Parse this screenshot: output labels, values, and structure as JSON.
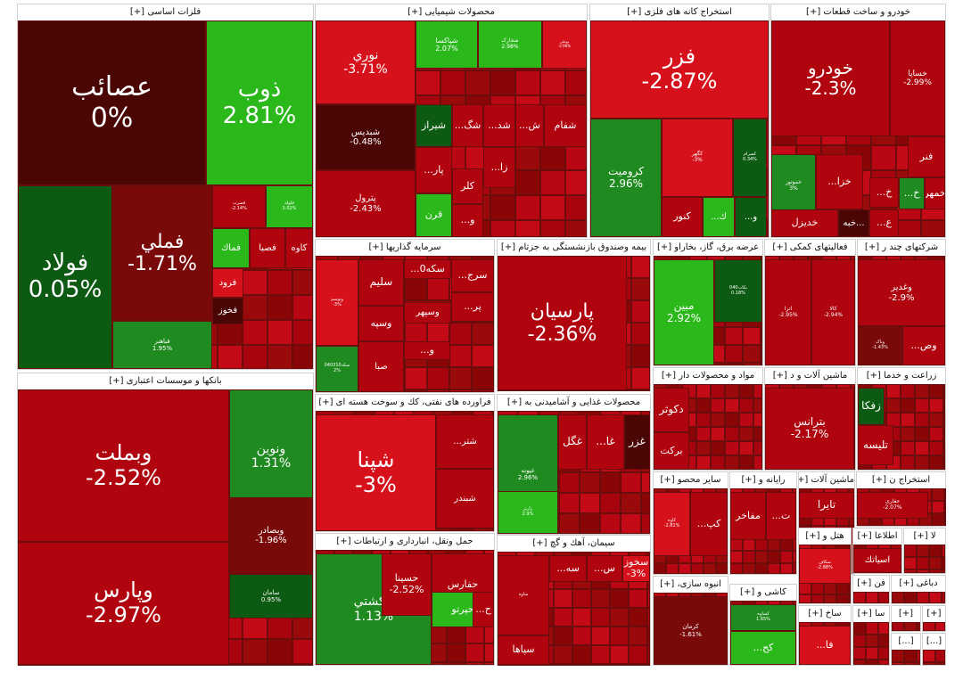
{
  "colors": {
    "deep_red": "#4a0505",
    "dark_red": "#7a0a0a",
    "red": "#b0040f",
    "bright_red": "#d6111b",
    "dark_green": "#0d5a12",
    "green": "#1f8a1f",
    "bright_green": "#2ab81b"
  },
  "chart_data": {
    "type": "treemap",
    "title": "",
    "sectors": [
      {
        "name": "فلزات اساسی [+]",
        "tiles": [
          {
            "symbol": "عصائب",
            "change": "0%",
            "color": "deep_red"
          },
          {
            "symbol": "ذوب",
            "change": "2.81%",
            "color": "bright_green"
          },
          {
            "symbol": "فولاد",
            "change": "0.05%",
            "color": "dark_green"
          },
          {
            "symbol": "فملي",
            "change": "-1.71%",
            "color": "dark_red"
          },
          {
            "symbol": "فباهنر",
            "change": "1.95%",
            "color": "green"
          },
          {
            "symbol": "فسرب",
            "change": "-2.14%",
            "color": "red"
          },
          {
            "symbol": "فلوله",
            "change": "3.02%",
            "color": "bright_green"
          },
          {
            "symbol": "فماك",
            "change": "",
            "color": "bright_green"
          },
          {
            "symbol": "فصبا",
            "change": "",
            "color": "red"
          },
          {
            "symbol": "كاوه",
            "change": "",
            "color": "red"
          },
          {
            "symbol": "فرود",
            "change": "",
            "color": "bright_red"
          },
          {
            "symbol": "فخوز",
            "change": "",
            "color": "deep_red"
          }
        ]
      },
      {
        "name": "محصولات شیمیایی [+]",
        "tiles": [
          {
            "symbol": "نوري",
            "change": "-3.71%",
            "color": "bright_red"
          },
          {
            "symbol": "شپاكسا",
            "change": "2.07%",
            "color": "bright_green"
          },
          {
            "symbol": "شخارک",
            "change": "2.98%",
            "color": "bright_green"
          },
          {
            "symbol": "بوعلی",
            "change": "-2.98%",
            "color": "bright_red"
          },
          {
            "symbol": "شبديس",
            "change": "-0.48%",
            "color": "deep_red"
          },
          {
            "symbol": "پترول",
            "change": "-2.43%",
            "color": "red"
          },
          {
            "symbol": "شیراز",
            "change": "",
            "color": "dark_green"
          },
          {
            "symbol": "شگ...",
            "change": "",
            "color": "red"
          },
          {
            "symbol": "شد...",
            "change": "",
            "color": "red"
          },
          {
            "symbol": "ش...",
            "change": "",
            "color": "red"
          },
          {
            "symbol": "شفام",
            "change": "",
            "color": "red"
          },
          {
            "symbol": "پار...",
            "change": "",
            "color": "red"
          },
          {
            "symbol": "زا...",
            "change": "",
            "color": "red"
          },
          {
            "symbol": "كلر",
            "change": "",
            "color": "red"
          },
          {
            "symbol": "قرن",
            "change": "",
            "color": "bright_green"
          },
          {
            "symbol": "و...",
            "change": "",
            "color": "red"
          }
        ]
      },
      {
        "name": "استخراج كانه های فلزی [+]",
        "tiles": [
          {
            "symbol": "فزر",
            "change": "-2.87%",
            "color": "bright_red"
          },
          {
            "symbol": "كروميت",
            "change": "2.96%",
            "color": "green"
          },
          {
            "symbol": "كگهر",
            "change": "-3%",
            "color": "bright_red"
          },
          {
            "symbol": "كسرام",
            "change": "0.34%",
            "color": "dark_green"
          },
          {
            "symbol": "كنور",
            "change": "",
            "color": "red"
          },
          {
            "symbol": "ك...",
            "change": "",
            "color": "bright_green"
          },
          {
            "symbol": "و...",
            "change": "",
            "color": "dark_green"
          }
        ]
      },
      {
        "name": "خودرو و ساخت قطعات [+]",
        "tiles": [
          {
            "symbol": "خودرو",
            "change": "-2.3%",
            "color": "red"
          },
          {
            "symbol": "خساپا",
            "change": "-2.99%",
            "color": "red"
          },
          {
            "symbol": "خموتور",
            "change": "3%",
            "color": "green"
          },
          {
            "symbol": "خزا...",
            "change": "",
            "color": "red"
          },
          {
            "symbol": "فنر",
            "change": "",
            "color": "red"
          },
          {
            "symbol": "خمهر",
            "change": "",
            "color": "red"
          },
          {
            "symbol": "خ...",
            "change": "",
            "color": "red"
          },
          {
            "symbol": "خ...",
            "change": "",
            "color": "green"
          },
          {
            "symbol": "خديزل",
            "change": "",
            "color": "red"
          },
          {
            "symbol": "...خبه",
            "change": "",
            "color": "deep_red"
          },
          {
            "symbol": "ع...",
            "change": "",
            "color": "red"
          }
        ]
      },
      {
        "name": "بانكها و موسسات اعتباری [+]",
        "tiles": [
          {
            "symbol": "وبملت",
            "change": "-2.52%",
            "color": "red"
          },
          {
            "symbol": "ونوين",
            "change": "1.31%",
            "color": "green"
          },
          {
            "symbol": "وبصادر",
            "change": "-1.96%",
            "color": "dark_red"
          },
          {
            "symbol": "وپارس",
            "change": "-2.97%",
            "color": "red"
          },
          {
            "symbol": "سامان",
            "change": "0.95%",
            "color": "dark_green"
          }
        ]
      },
      {
        "name": "سرمايه گذاريها [+]",
        "tiles": [
          {
            "symbol": "وتوسم",
            "change": "-3%",
            "color": "bright_red"
          },
          {
            "symbol": "سليم",
            "change": "",
            "color": "red"
          },
          {
            "symbol": "سكه0...",
            "change": "",
            "color": "red"
          },
          {
            "symbol": "سرج...",
            "change": "",
            "color": "red"
          },
          {
            "symbol": "وسپهر",
            "change": "",
            "color": "red"
          },
          {
            "symbol": "پر...",
            "change": "",
            "color": "red"
          },
          {
            "symbol": "وسپه",
            "change": "",
            "color": "red"
          },
          {
            "symbol": "سكه040310",
            "change": "2%",
            "color": "green"
          },
          {
            "symbol": "و...",
            "change": "",
            "color": "red"
          },
          {
            "symbol": "صبا",
            "change": "",
            "color": "red"
          }
        ]
      },
      {
        "name": "بیمه وصندوق بازنشستگی به جزتام [+]",
        "tiles": [
          {
            "symbol": "پارسيان",
            "change": "-2.36%",
            "color": "red"
          }
        ]
      },
      {
        "name": "عرضه برق، گاز، بخاراو [+]",
        "tiles": [
          {
            "symbol": "مبين",
            "change": "2.92%",
            "color": "bright_green"
          },
          {
            "symbol": "بكاب040",
            "change": "0.18%",
            "color": "dark_green"
          }
        ]
      },
      {
        "name": "فعاليتهای كمكی [+]",
        "tiles": [
          {
            "symbol": "اترا",
            "change": "-2.95%",
            "color": "red"
          },
          {
            "symbol": "كالا",
            "change": "-2.94%",
            "color": "red"
          }
        ]
      },
      {
        "name": "شركتهای چند ر [+]",
        "tiles": [
          {
            "symbol": "وغدير",
            "change": "-2.9%",
            "color": "red"
          },
          {
            "symbol": "وپاک",
            "change": "-1.43%",
            "color": "dark_red"
          },
          {
            "symbol": "وص...",
            "change": "",
            "color": "red"
          }
        ]
      },
      {
        "name": "فراورده های نفتی، كك و سوخت هسته ای [+]",
        "tiles": [
          {
            "symbol": "شپنا",
            "change": "-3%",
            "color": "bright_red"
          },
          {
            "symbol": "شتر...",
            "change": "",
            "color": "red"
          },
          {
            "symbol": "شبندر",
            "change": "",
            "color": "red"
          }
        ]
      },
      {
        "name": "محصولات غذايی و آشاميدنی به [+]",
        "tiles": [
          {
            "symbol": "غپونه",
            "change": "2.96%",
            "color": "green"
          },
          {
            "symbol": "غگل",
            "change": "",
            "color": "red"
          },
          {
            "symbol": "غا...",
            "change": "",
            "color": "red"
          },
          {
            "symbol": "غزر",
            "change": "",
            "color": "deep_red"
          },
          {
            "symbol": "زاریز",
            "change": "2.9%",
            "color": "bright_green"
          }
        ]
      },
      {
        "name": "مواد و محصولات دار [+]",
        "tiles": [
          {
            "symbol": "دكوثر",
            "change": "",
            "color": "red"
          },
          {
            "symbol": "بركت",
            "change": "",
            "color": "red"
          }
        ]
      },
      {
        "name": "ماشين آلات و د [+]",
        "tiles": [
          {
            "symbol": "بترانس",
            "change": "-2.17%",
            "color": "red"
          }
        ]
      },
      {
        "name": "زراعت و خدما [+]",
        "tiles": [
          {
            "symbol": "زفكا",
            "change": "",
            "color": "dark_green"
          },
          {
            "symbol": "تليسه",
            "change": "",
            "color": "red"
          }
        ]
      },
      {
        "name": "حمل ونقل، انبارداری و ارتباطات [+]",
        "tiles": [
          {
            "symbol": "حكشتي",
            "change": "1.13%",
            "color": "green"
          },
          {
            "symbol": "حسينا",
            "change": "-2.52%",
            "color": "red"
          },
          {
            "symbol": "حفارس",
            "change": "",
            "color": "red"
          },
          {
            "symbol": "حپرتو",
            "change": "",
            "color": "bright_green"
          },
          {
            "symbol": "ح...",
            "change": "",
            "color": "red"
          }
        ]
      },
      {
        "name": "سيمان، آهك و گچ [+]",
        "tiles": [
          {
            "symbol": "ساوه",
            "change": "",
            "color": "red"
          },
          {
            "symbol": "سه...",
            "change": "",
            "color": "red"
          },
          {
            "symbol": "س...",
            "change": "",
            "color": "red"
          },
          {
            "symbol": "سخوز",
            "change": "-3%",
            "color": "bright_red"
          },
          {
            "symbol": "سپاها",
            "change": "",
            "color": "red"
          }
        ]
      },
      {
        "name": "ساير محصو [+]",
        "tiles": [
          {
            "symbol": "کاوه",
            "change": "-2.81%",
            "color": "bright_red"
          },
          {
            "symbol": "كپ...",
            "change": "",
            "color": "red"
          }
        ]
      },
      {
        "name": "رايانه و [+]",
        "tiles": [
          {
            "symbol": "مفاخر",
            "change": "",
            "color": "red"
          },
          {
            "symbol": "ت...",
            "change": "",
            "color": "red"
          }
        ]
      },
      {
        "name": "ماشين آلات [+]",
        "tiles": [
          {
            "symbol": "تايرا",
            "change": "",
            "color": "red"
          }
        ]
      },
      {
        "name": "استخراج ن [+]",
        "tiles": [
          {
            "symbol": "حفاری",
            "change": "-2.07%",
            "color": "red"
          }
        ]
      },
      {
        "name": "انبوه سازی، [+]",
        "tiles": [
          {
            "symbol": "كرمان",
            "change": "-1.61%",
            "color": "dark_red"
          }
        ]
      },
      {
        "name": "كاشی و [+]",
        "tiles": [
          {
            "symbol": "كساوه",
            "change": "1.65%",
            "color": "green"
          },
          {
            "symbol": "كح...",
            "change": "",
            "color": "bright_green"
          }
        ]
      },
      {
        "name": "هتل و [+]",
        "tiles": [
          {
            "symbol": "سكاف",
            "change": "-2.88%",
            "color": "bright_red"
          }
        ]
      },
      {
        "name": "اطلاعا [+]",
        "tiles": [
          {
            "symbol": "اسياتك",
            "change": "",
            "color": "red"
          }
        ]
      },
      {
        "name": "لا [+]",
        "tiles": []
      },
      {
        "name": "فن [+]",
        "tiles": []
      },
      {
        "name": "دباغی [+]",
        "tiles": []
      },
      {
        "name": "ساخ [+]",
        "tiles": [
          {
            "symbol": "فا...",
            "change": "",
            "color": "bright_red"
          }
        ]
      },
      {
        "name": "سا [+]",
        "tiles": []
      },
      {
        "name": "[+]",
        "tiles": []
      },
      {
        "name": "[+]",
        "tiles": []
      },
      {
        "name": "[...]",
        "tiles": []
      },
      {
        "name": "[...]",
        "tiles": []
      }
    ]
  }
}
